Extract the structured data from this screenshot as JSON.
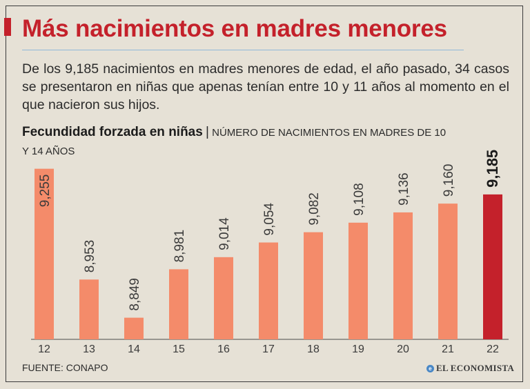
{
  "title": "Más nacimientos en madres menores",
  "intro": "De los 9,185 nacimientos en madres menores de edad, el año pasado, 34 casos se presentaron en niñas que apenas tenían entre 10 y 11 años al momento en el que nacieron sus hijos.",
  "subtitle": {
    "bold": "Fecundidad forzada en niñas",
    "separator": "|",
    "rest": "NÚMERO DE NACIMIENTOS EN MADRES DE 10 Y 14 AÑOS"
  },
  "source": "FUENTE: CONAPO",
  "brand": "EL ECONOMISTA",
  "colors": {
    "bar": "#f48b6a",
    "highlight": "#c4212b",
    "title": "#c4212b",
    "background": "#e6e1d6"
  },
  "chart_data": {
    "type": "bar",
    "title": "Fecundidad forzada en niñas",
    "ylabel": "NÚMERO DE NACIMIENTOS EN MADRES DE 10 Y 14 AÑOS",
    "categories": [
      "12",
      "13",
      "14",
      "15",
      "16",
      "17",
      "18",
      "19",
      "20",
      "21",
      "22"
    ],
    "values": [
      9255,
      8953,
      8849,
      8981,
      9014,
      9054,
      9082,
      9108,
      9136,
      9160,
      9185
    ],
    "labels": [
      "9,255",
      "8,953",
      "8,849",
      "8,981",
      "9,014",
      "9,054",
      "9,082",
      "9,108",
      "9,136",
      "9,160",
      "9,185"
    ],
    "highlight_index": 10,
    "ylim": [
      8790,
      9260
    ]
  }
}
